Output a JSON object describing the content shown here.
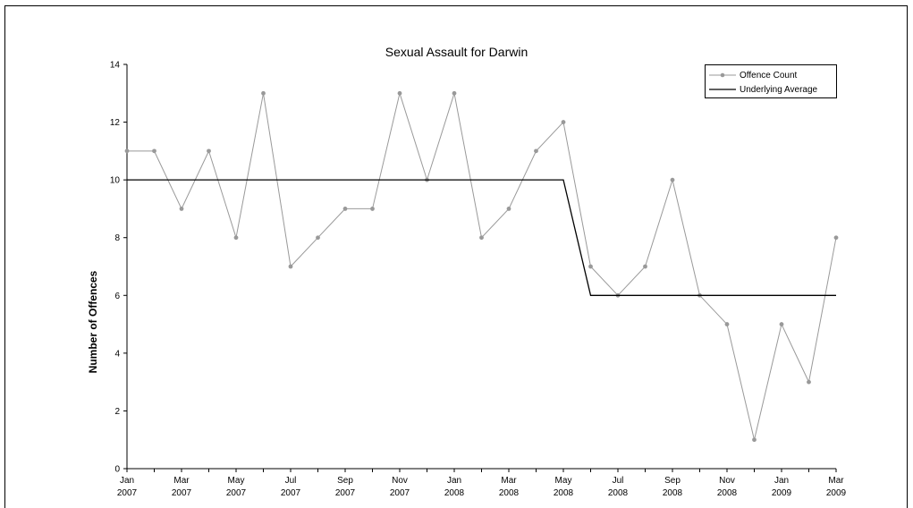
{
  "chart_data": {
    "type": "line",
    "title": "Sexual Assault for Darwin",
    "xlabel": "",
    "ylabel": "Number of Offences",
    "ylim": [
      0,
      14
    ],
    "yticks": [
      0,
      2,
      4,
      6,
      8,
      10,
      12,
      14
    ],
    "grid": false,
    "legend_position": "top-right",
    "x": [
      "Jan 2007",
      "Feb 2007",
      "Mar 2007",
      "Apr 2007",
      "May 2007",
      "Jun 2007",
      "Jul 2007",
      "Aug 2007",
      "Sep 2007",
      "Oct 2007",
      "Nov 2007",
      "Dec 2007",
      "Jan 2008",
      "Feb 2008",
      "Mar 2008",
      "Apr 2008",
      "May 2008",
      "Jun 2008",
      "Jul 2008",
      "Aug 2008",
      "Sep 2008",
      "Oct 2008",
      "Nov 2008",
      "Dec 2008",
      "Jan 2009",
      "Feb 2009",
      "Mar 2009"
    ],
    "tick_labels": [
      {
        "month": "Jan",
        "year": "2007"
      },
      {
        "month": "Mar",
        "year": "2007"
      },
      {
        "month": "May",
        "year": "2007"
      },
      {
        "month": "Jul",
        "year": "2007"
      },
      {
        "month": "Sep",
        "year": "2007"
      },
      {
        "month": "Nov",
        "year": "2007"
      },
      {
        "month": "Jan",
        "year": "2008"
      },
      {
        "month": "Mar",
        "year": "2008"
      },
      {
        "month": "May",
        "year": "2008"
      },
      {
        "month": "Jul",
        "year": "2008"
      },
      {
        "month": "Sep",
        "year": "2008"
      },
      {
        "month": "Nov",
        "year": "2008"
      },
      {
        "month": "Jan",
        "year": "2009"
      },
      {
        "month": "Mar",
        "year": "2009"
      }
    ],
    "series": [
      {
        "name": "Offence Count",
        "color": "#999999",
        "marker": "circle",
        "values": [
          11,
          11,
          9,
          11,
          8,
          13,
          7,
          8,
          9,
          9,
          13,
          10,
          13,
          8,
          9,
          11,
          12,
          7,
          6,
          7,
          10,
          6,
          5,
          1,
          5,
          3,
          8
        ]
      },
      {
        "name": "Underlying Average",
        "color": "#000000",
        "marker": "none",
        "values": [
          10,
          10,
          10,
          10,
          10,
          10,
          10,
          10,
          10,
          10,
          10,
          10,
          10,
          10,
          10,
          10,
          10,
          6,
          6,
          6,
          6,
          6,
          6,
          6,
          6,
          6,
          6
        ]
      }
    ]
  }
}
